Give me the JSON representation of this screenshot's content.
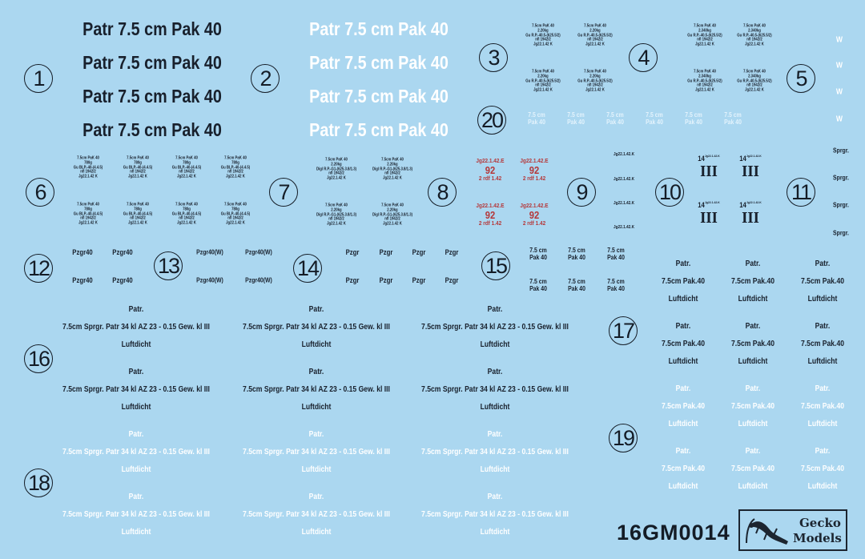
{
  "colors": {
    "background": "#abd7f0",
    "dark": "#18202c",
    "white": "#ffffff",
    "red": "#b5383a"
  },
  "sheet_code": "16GM0014",
  "logo": {
    "line1": "Gecko",
    "line2": "Models",
    "icon": "gecko-icon"
  },
  "groups": [
    {
      "number": "1",
      "decals": [
        [
          "Patr 7.5 cm  Pak 40"
        ],
        [
          "Patr 7.5 cm  Pak 40"
        ],
        [
          "Patr 7.5 cm  Pak 40"
        ],
        [
          "Patr 7.5 cm  Pak 40"
        ]
      ]
    },
    {
      "number": "2",
      "decals": [
        [
          "Patr 7.5 cm  Pak 40"
        ],
        [
          "Patr 7.5 cm  Pak 40"
        ],
        [
          "Patr 7.5 cm  Pak 40"
        ],
        [
          "Patr 7.5 cm  Pak 40"
        ]
      ]
    },
    {
      "number": "3",
      "decals": [
        [
          "7.5cm PaK 40",
          "2.20kg",
          "Gu R.P.-40.5-(625.5/2)",
          "nfl 1942/2",
          "Jg22.1.42 K"
        ],
        [
          "7.5cm PaK 40",
          "2.20kg",
          "Gu R.P.-40.5-(625.5/2)",
          "nfl 1942/2",
          "Jg22.1.42 K"
        ],
        [
          "7.5cm PaK 40",
          "2.20kg",
          "Gu R.P.-40.5-(625.5/2)",
          "nfl 1942/2",
          "Jg22.1.42 K"
        ],
        [
          "7.5cm PaK 40",
          "2.20kg",
          "Gu R.P.-40.5-(625.5/2)",
          "nfl 1942/2",
          "Jg22.1.42 K"
        ]
      ]
    },
    {
      "number": "4",
      "decals": [
        [
          "7.5cm PaK 40",
          "2.340kg",
          "Gu R.P.-40.5-(625.5/2)",
          "nfl 1942/2",
          "Jg22.1.42 K"
        ],
        [
          "7.5cm PaK 40",
          "2.340kg",
          "Gu R.P.-40.5-(625.5/2)",
          "nfl 1942/2",
          "Jg22.1.42 K"
        ],
        [
          "7.5cm PaK 40",
          "2.340kg",
          "Gu R.P.-40.5-(625.5/2)",
          "nfl 1942/2",
          "Jg22.1.42 K"
        ],
        [
          "7.5cm PaK 40",
          "2.340kg",
          "Gu R.P.-40.5-(625.5/2)",
          "nfl 1942/2",
          "Jg22.1.42 K"
        ]
      ]
    },
    {
      "number": "5",
      "decals": [
        [
          "W"
        ],
        [
          "W"
        ],
        [
          "W"
        ],
        [
          "W"
        ]
      ]
    },
    {
      "number": "20",
      "decals": [
        [
          "7.5 cm",
          "Pak 40"
        ],
        [
          "7.5 cm",
          "Pak 40"
        ],
        [
          "7.5 cm",
          "Pak 40"
        ],
        [
          "7.5 cm",
          "Pak 40"
        ],
        [
          "7.5 cm",
          "Pak 40"
        ],
        [
          "7.5 cm",
          "Pak 40"
        ]
      ]
    },
    {
      "number": "6",
      "decals": [
        [
          "7.5cm PaK 40",
          "780g",
          "Gu BLP.-40-(4.4.5)",
          "nfl 1942/2",
          "Jg22.1.42 K"
        ],
        [
          "7.5cm PaK 40",
          "780g",
          "Gu BLP.-40-(4.4.5)",
          "nfl 1942/2",
          "Jg22.1.42 K"
        ],
        [
          "7.5cm PaK 40",
          "780g",
          "Gu BLP.-40-(4.4.5)",
          "nfl 1942/2",
          "Jg22.1.42 K"
        ],
        [
          "7.5cm PaK 40",
          "780g",
          "Gu BLP.-40-(4.4.5)",
          "nfl 1942/2",
          "Jg22.1.42 K"
        ],
        [
          "7.5cm PaK 40",
          "780g",
          "Gu BLP.-40-(4.4.5)",
          "nfl 1942/2",
          "Jg22.1.42 K"
        ],
        [
          "7.5cm PaK 40",
          "780g",
          "Gu BLP.-40-(4.4.5)",
          "nfl 1942/2",
          "Jg22.1.42 K"
        ],
        [
          "7.5cm PaK 40",
          "780g",
          "Gu BLP.-40-(4.4.5)",
          "nfl 1942/2",
          "Jg22.1.42 K"
        ],
        [
          "7.5cm PaK 40",
          "780g",
          "Gu BLP.-40-(4.4.5)",
          "nfl 1942/2",
          "Jg22.1.42 K"
        ]
      ]
    },
    {
      "number": "7",
      "decals": [
        [
          "7.5cm PaK 40",
          "2.20kg",
          "Digl R.P.-G1-(625.3.8/1.3)",
          "nfl 1942/2",
          "Jg22.1.42 K"
        ],
        [
          "7.5cm PaK 40",
          "2.20kg",
          "Digl R.P.-G1-(625.3.8/1.3)",
          "nfl 1942/2",
          "Jg22.1.42 K"
        ],
        [
          "7.5cm PaK 40",
          "2.20kg",
          "Digl R.P.-G1-(625.3.8/1.3)",
          "nfl 1942/2",
          "Jg22.1.42 K"
        ],
        [
          "7.5cm PaK 40",
          "2.20kg",
          "Digl R.P.-G1-(625.3.8/1.3)",
          "nfl 1942/2",
          "Jg22.1.42 K"
        ]
      ]
    },
    {
      "number": "8",
      "decals": [
        [
          "Jg22.1.42.E",
          "92",
          "2 rdf 1.42"
        ],
        [
          "Jg22.1.42.E",
          "92",
          "2 rdf 1.42"
        ],
        [
          "Jg22.1.42.E",
          "92",
          "2 rdf 1.42"
        ],
        [
          "Jg22.1.42.E",
          "92",
          "2 rdf 1.42"
        ]
      ]
    },
    {
      "number": "9",
      "decals": [
        [
          "Jg22.1.42.K"
        ],
        [
          "Jg22.1.42.K"
        ],
        [
          "Jg22.1.42.K"
        ],
        [
          "Jg22.1.42.K"
        ]
      ]
    },
    {
      "number": "10",
      "decals": [
        [
          "14",
          "Jg22.1.42.K",
          "III"
        ],
        [
          "14",
          "Jg22.1.42.K",
          "III"
        ],
        [
          "14",
          "Jg22.1.42.K",
          "III"
        ],
        [
          "14",
          "Jg22.1.42.K",
          "III"
        ]
      ]
    },
    {
      "number": "11",
      "decals": [
        [
          "Sprgr."
        ],
        [
          "Sprgr."
        ],
        [
          "Sprgr."
        ],
        [
          "Sprgr."
        ]
      ]
    },
    {
      "number": "12",
      "decals": [
        [
          "Pzgr40"
        ],
        [
          "Pzgr40"
        ],
        [
          "Pzgr40"
        ],
        [
          "Pzgr40"
        ]
      ]
    },
    {
      "number": "13",
      "decals": [
        [
          "Pzgr40(W)"
        ],
        [
          "Pzgr40(W)"
        ],
        [
          "Pzgr40(W)"
        ],
        [
          "Pzgr40(W)"
        ]
      ]
    },
    {
      "number": "14",
      "decals": [
        [
          "Pzgr"
        ],
        [
          "Pzgr"
        ],
        [
          "Pzgr"
        ],
        [
          "Pzgr"
        ],
        [
          "Pzgr"
        ],
        [
          "Pzgr"
        ],
        [
          "Pzgr"
        ],
        [
          "Pzgr"
        ]
      ]
    },
    {
      "number": "15",
      "decals": [
        [
          "7.5 cm",
          "Pak 40"
        ],
        [
          "7.5 cm",
          "Pak 40"
        ],
        [
          "7.5 cm",
          "Pak 40"
        ],
        [
          "7.5 cm",
          "Pak 40"
        ],
        [
          "7.5 cm",
          "Pak 40"
        ],
        [
          "7.5 cm",
          "Pak 40"
        ]
      ]
    },
    {
      "number": "16",
      "decals": [
        [
          "Patr.",
          "7.5cm  Sprgr. Patr 34 kl AZ 23 - 0.15 Gew. kl III",
          "Luftdicht"
        ],
        [
          "Patr.",
          "7.5cm  Sprgr. Patr 34 kl AZ 23 - 0.15 Gew. kl III",
          "Luftdicht"
        ],
        [
          "Patr.",
          "7.5cm  Sprgr. Patr 34 kl AZ 23 - 0.15 Gew. kl III",
          "Luftdicht"
        ],
        [
          "Patr.",
          "7.5cm  Sprgr. Patr 34 kl AZ 23 - 0.15 Gew. kl III",
          "Luftdicht"
        ],
        [
          "Patr.",
          "7.5cm  Sprgr. Patr 34 kl AZ 23 - 0.15 Gew. kl III",
          "Luftdicht"
        ],
        [
          "Patr.",
          "7.5cm  Sprgr. Patr 34 kl AZ 23 - 0.15 Gew. kl III",
          "Luftdicht"
        ]
      ]
    },
    {
      "number": "18",
      "decals": [
        [
          "Patr.",
          "7.5cm  Sprgr. Patr 34 kl AZ 23 - 0.15 Gew. kl III",
          "Luftdicht"
        ],
        [
          "Patr.",
          "7.5cm  Sprgr. Patr 34 kl AZ 23 - 0.15 Gew. kl III",
          "Luftdicht"
        ],
        [
          "Patr.",
          "7.5cm  Sprgr. Patr 34 kl AZ 23 - 0.15 Gew. kl III",
          "Luftdicht"
        ],
        [
          "Patr.",
          "7.5cm  Sprgr. Patr 34 kl AZ 23 - 0.15 Gew. kl III",
          "Luftdicht"
        ],
        [
          "Patr.",
          "7.5cm  Sprgr. Patr 34 kl AZ 23 - 0.15 Gew. kl III",
          "Luftdicht"
        ],
        [
          "Patr.",
          "7.5cm  Sprgr. Patr 34 kl AZ 23 - 0.15 Gew. kl III",
          "Luftdicht"
        ]
      ]
    },
    {
      "number": "17",
      "decals": [
        [
          "Patr.",
          "7.5cm  Pak.40",
          "Luftdicht"
        ],
        [
          "Patr.",
          "7.5cm  Pak.40",
          "Luftdicht"
        ],
        [
          "Patr.",
          "7.5cm  Pak.40",
          "Luftdicht"
        ],
        [
          "Patr.",
          "7.5cm  Pak.40",
          "Luftdicht"
        ],
        [
          "Patr.",
          "7.5cm  Pak.40",
          "Luftdicht"
        ],
        [
          "Patr.",
          "7.5cm  Pak.40",
          "Luftdicht"
        ]
      ]
    },
    {
      "number": "19",
      "decals": [
        [
          "Patr.",
          "7.5cm  Pak.40",
          "Luftdicht"
        ],
        [
          "Patr.",
          "7.5cm  Pak.40",
          "Luftdicht"
        ],
        [
          "Patr.",
          "7.5cm  Pak.40",
          "Luftdicht"
        ],
        [
          "Patr.",
          "7.5cm  Pak.40",
          "Luftdicht"
        ],
        [
          "Patr.",
          "7.5cm  Pak.40",
          "Luftdicht"
        ],
        [
          "Patr.",
          "7.5cm  Pak.40",
          "Luftdicht"
        ]
      ]
    }
  ]
}
